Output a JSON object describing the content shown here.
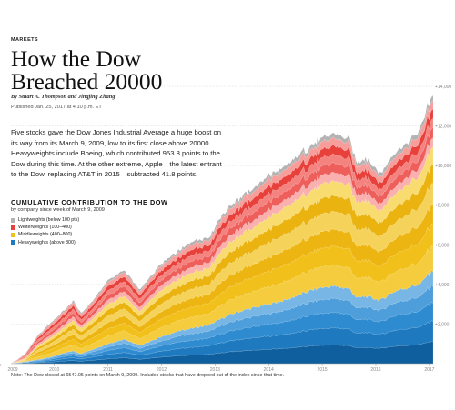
{
  "article": {
    "section": "MARKETS",
    "title": "How the Dow Breached 20000",
    "byline": "By Stuart A. Thompson and Jingjing Zhang",
    "published": "Published Jan. 25, 2017 at 4:10 p.m. ET",
    "intro": "Five stocks gave the Dow Jones Industrial Average a huge boost on its way from its March 9, 2009, low to its first close above 20000. Heavyweights include Boeing, which contributed 953.8 points to the Dow during this time. At the other extreme, Apple—the latest entrant to the Dow, replacing AT&T in 2015—subtracted 41.8 points."
  },
  "legend": {
    "title": "CUMULATIVE CONTRIBUTION TO THE DOW",
    "subtitle": "by company since week of March 9, 2009",
    "items": [
      {
        "label": "Lightweights (below 100 pts)",
        "color": "#b3b3b3"
      },
      {
        "label": "Welterweights (100–400)",
        "color": "#e8413c"
      },
      {
        "label": "Middleweights (400–800)",
        "color": "#f2c01a"
      },
      {
        "label": "Heavyweights (above 800)",
        "color": "#1f79bf"
      }
    ]
  },
  "note": "Note: The Dow closed at 6547.05 points on March 9, 2009. Includes stocks that have dropped out of the index since that time.",
  "colors": {
    "heavy": [
      "#0f5f9e",
      "#1f79bf",
      "#2e8bd0",
      "#4d9edb",
      "#78b6e5"
    ],
    "middle": [
      "#f4cc3e",
      "#f2c01a",
      "#edb512",
      "#f5d35a",
      "#eab310",
      "#f8dc70"
    ],
    "welter": [
      "#f9b0ae",
      "#ee5f5b",
      "#f48380",
      "#e8413c",
      "#f79e9b"
    ],
    "light": "#b3b3b3"
  },
  "chart_data": {
    "type": "area",
    "stacked": true,
    "x_ticks": [
      "2009",
      "2010",
      "2011",
      "2012",
      "2013",
      "2014",
      "2015",
      "2016",
      "2017"
    ],
    "y_ticks": [
      "+2,000",
      "+4,000",
      "+6,000",
      "+8,000",
      "+10,000",
      "+12,000",
      "+14,000"
    ],
    "ylim": [
      0,
      14000
    ],
    "xlim": [
      2009.19,
      2017.07
    ],
    "grid": true,
    "legend_position": "top-left",
    "x": [
      2009.19,
      2009.45,
      2009.7,
      2009.95,
      2010.2,
      2010.35,
      2010.5,
      2010.75,
      2011.0,
      2011.3,
      2011.6,
      2011.8,
      2012.1,
      2012.4,
      2012.6,
      2012.9,
      2013.1,
      2013.4,
      2013.7,
      2014.0,
      2014.3,
      2014.6,
      2014.9,
      2015.2,
      2015.5,
      2015.65,
      2015.8,
      2016.1,
      2016.3,
      2016.6,
      2016.85,
      2016.95,
      2017.07
    ],
    "series": [
      {
        "name": "Heavyweights (above 800)",
        "values": [
          0,
          100,
          200,
          350,
          550,
          650,
          500,
          750,
          1000,
          1250,
          900,
          1150,
          1450,
          1700,
          1800,
          1950,
          2250,
          2600,
          2800,
          3000,
          3200,
          3500,
          3800,
          3900,
          3800,
          3300,
          3400,
          3200,
          3600,
          3850,
          4050,
          4450,
          4700
        ]
      },
      {
        "name": "Middleweights (400–800)",
        "values": [
          0,
          150,
          700,
          1000,
          1300,
          1550,
          1250,
          1600,
          2000,
          2200,
          1700,
          2100,
          2450,
          2650,
          2850,
          2900,
          3400,
          3800,
          4000,
          4400,
          4600,
          4900,
          5100,
          5300,
          5250,
          4800,
          4900,
          4500,
          4900,
          5200,
          5500,
          6000,
          6300
        ]
      },
      {
        "name": "Welterweights (100–400)",
        "values": [
          0,
          200,
          500,
          700,
          800,
          900,
          700,
          850,
          1100,
          1200,
          1000,
          1100,
          1250,
          1350,
          1450,
          1400,
          1600,
          1700,
          1800,
          1900,
          1900,
          2000,
          2100,
          2150,
          2100,
          1800,
          1900,
          1700,
          1800,
          1900,
          2100,
          2250,
          2300
        ]
      },
      {
        "name": "Lightweights (below 100 pts)",
        "values": [
          0,
          20,
          40,
          60,
          70,
          80,
          70,
          80,
          100,
          110,
          90,
          100,
          120,
          130,
          140,
          140,
          150,
          170,
          180,
          200,
          200,
          210,
          220,
          230,
          220,
          200,
          210,
          200,
          210,
          220,
          240,
          260,
          270
        ]
      }
    ]
  }
}
